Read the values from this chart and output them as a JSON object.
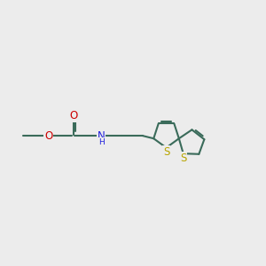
{
  "bg_color": "#ececec",
  "bond_color": "#3a6b5a",
  "bond_lw": 1.5,
  "colors": {
    "O": "#cc0000",
    "N": "#2020dd",
    "S": "#b8a500",
    "C": "#3a6b5a"
  },
  "figsize": [
    3.0,
    3.0
  ],
  "dpi": 100,
  "xlim": [
    -0.5,
    9.0
  ],
  "ylim": [
    2.5,
    6.5
  ]
}
